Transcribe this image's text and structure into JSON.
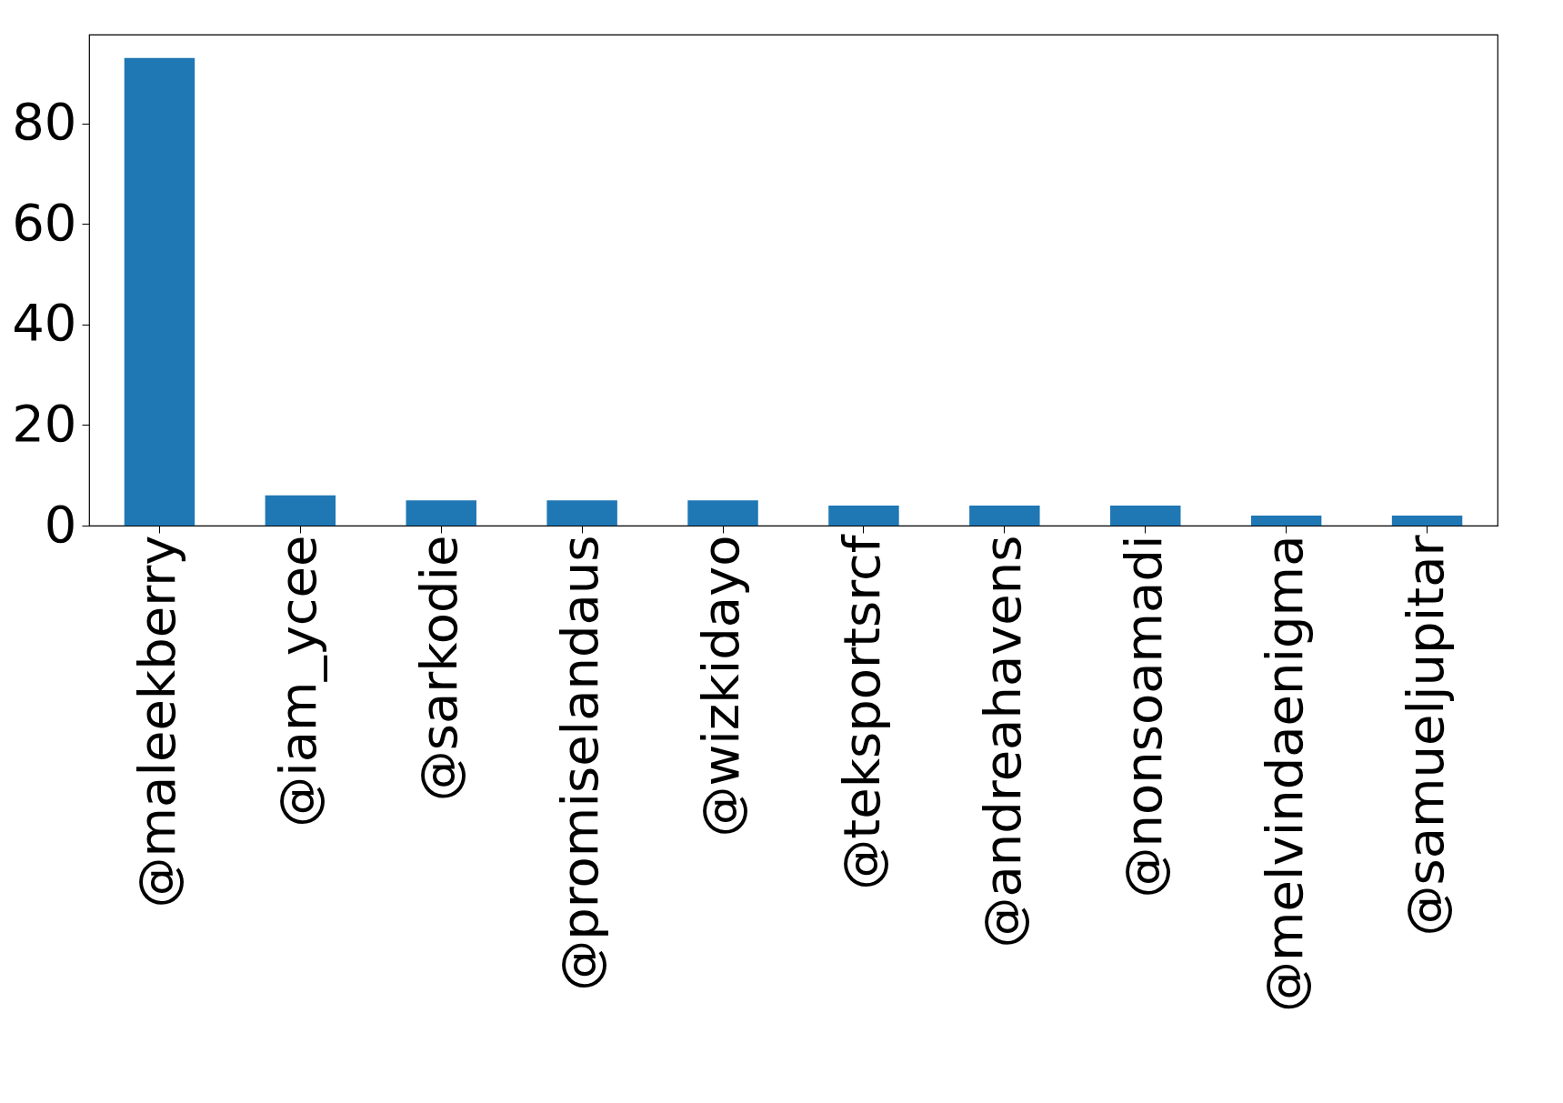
{
  "chart_data": {
    "type": "bar",
    "categories": [
      "@maleekberry",
      "@iam_ycee",
      "@sarkodie",
      "@promiselandaus",
      "@wizkidayo",
      "@teksportsrcf",
      "@andreahavens",
      "@nonsoamadi",
      "@melvindaenigma",
      "@samueljupitar"
    ],
    "values": [
      93,
      6,
      5,
      5,
      5,
      4,
      4,
      4,
      2,
      2
    ],
    "color": "#1f77b4",
    "ylim": [
      0,
      97.65
    ],
    "yticks": [
      0,
      20,
      40,
      60,
      80
    ],
    "grid": false
  }
}
